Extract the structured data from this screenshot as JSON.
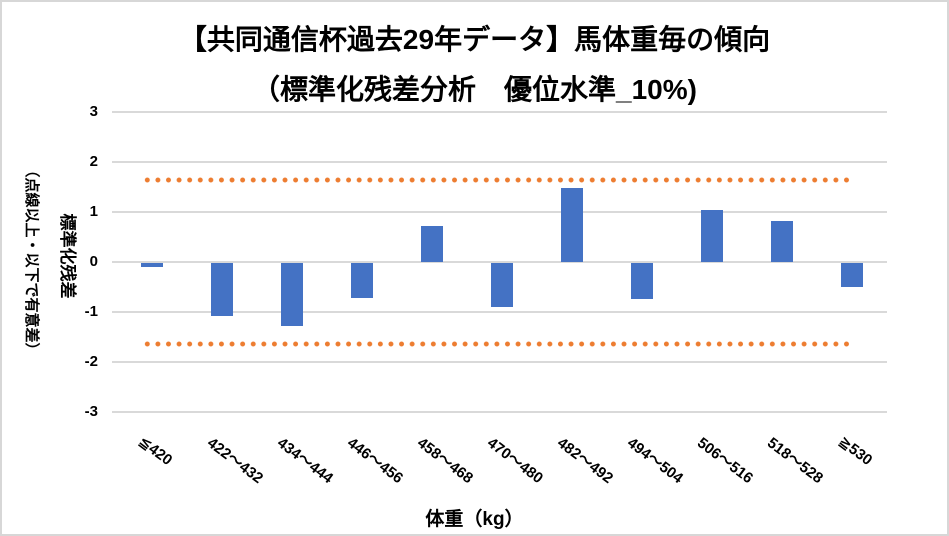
{
  "chart_data": {
    "type": "bar",
    "title_line1": "【共同通信杯過去29年データ】馬体重毎の傾向",
    "title_line2": "（標準化残差分析　優位水準_10%)",
    "xlabel": "体重（kg）",
    "ylabel": "標準化残差",
    "ylabel_note": "（点線以上・以下で有意差）",
    "categories": [
      "≦420",
      "422～432",
      "434～444",
      "446～456",
      "458～468",
      "470～480",
      "482～492",
      "494～504",
      "506～516",
      "518～528",
      "≧530"
    ],
    "values": [
      -0.07,
      -1.05,
      -1.25,
      -0.7,
      0.73,
      -0.87,
      1.49,
      -0.72,
      1.05,
      0.82,
      -0.48
    ],
    "series_name": "標準化残差",
    "ylim": [
      -3,
      3
    ],
    "yticks": [
      3,
      2,
      1,
      0,
      -1,
      -2,
      -3
    ],
    "threshold_upper": 1.645,
    "threshold_lower": -1.645,
    "grid": true,
    "legend": false,
    "bar_color": "#4472C4",
    "threshold_dot_color": "#ED7D31",
    "gridline_color": "#D9D9D9"
  }
}
